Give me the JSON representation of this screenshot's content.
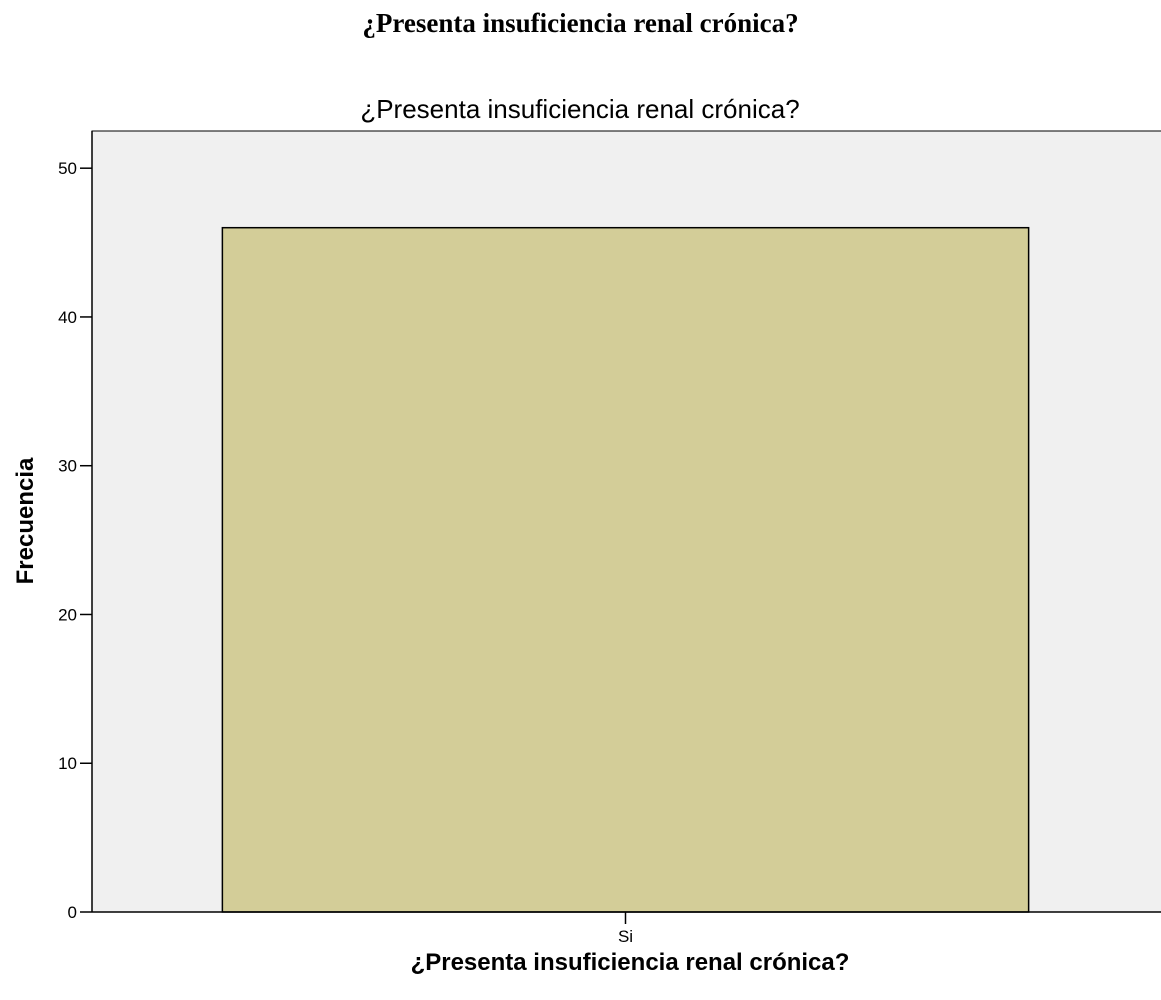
{
  "heading": "¿Presenta insuficiencia renal crónica?",
  "colors": {
    "plot_background": "#f0f0f0",
    "bar_fill": "#d3cd98",
    "bar_stroke": "#000000"
  },
  "chart_data": {
    "type": "bar",
    "title": "¿Presenta insuficiencia renal crónica?",
    "xlabel": "¿Presenta insuficiencia renal crónica?",
    "ylabel": "Frecuencia",
    "categories": [
      "Si"
    ],
    "values": [
      46
    ],
    "ylim": [
      0,
      52.5
    ],
    "yticks": [
      0,
      10,
      20,
      30,
      40,
      50
    ],
    "grid": false,
    "legend": "none"
  }
}
